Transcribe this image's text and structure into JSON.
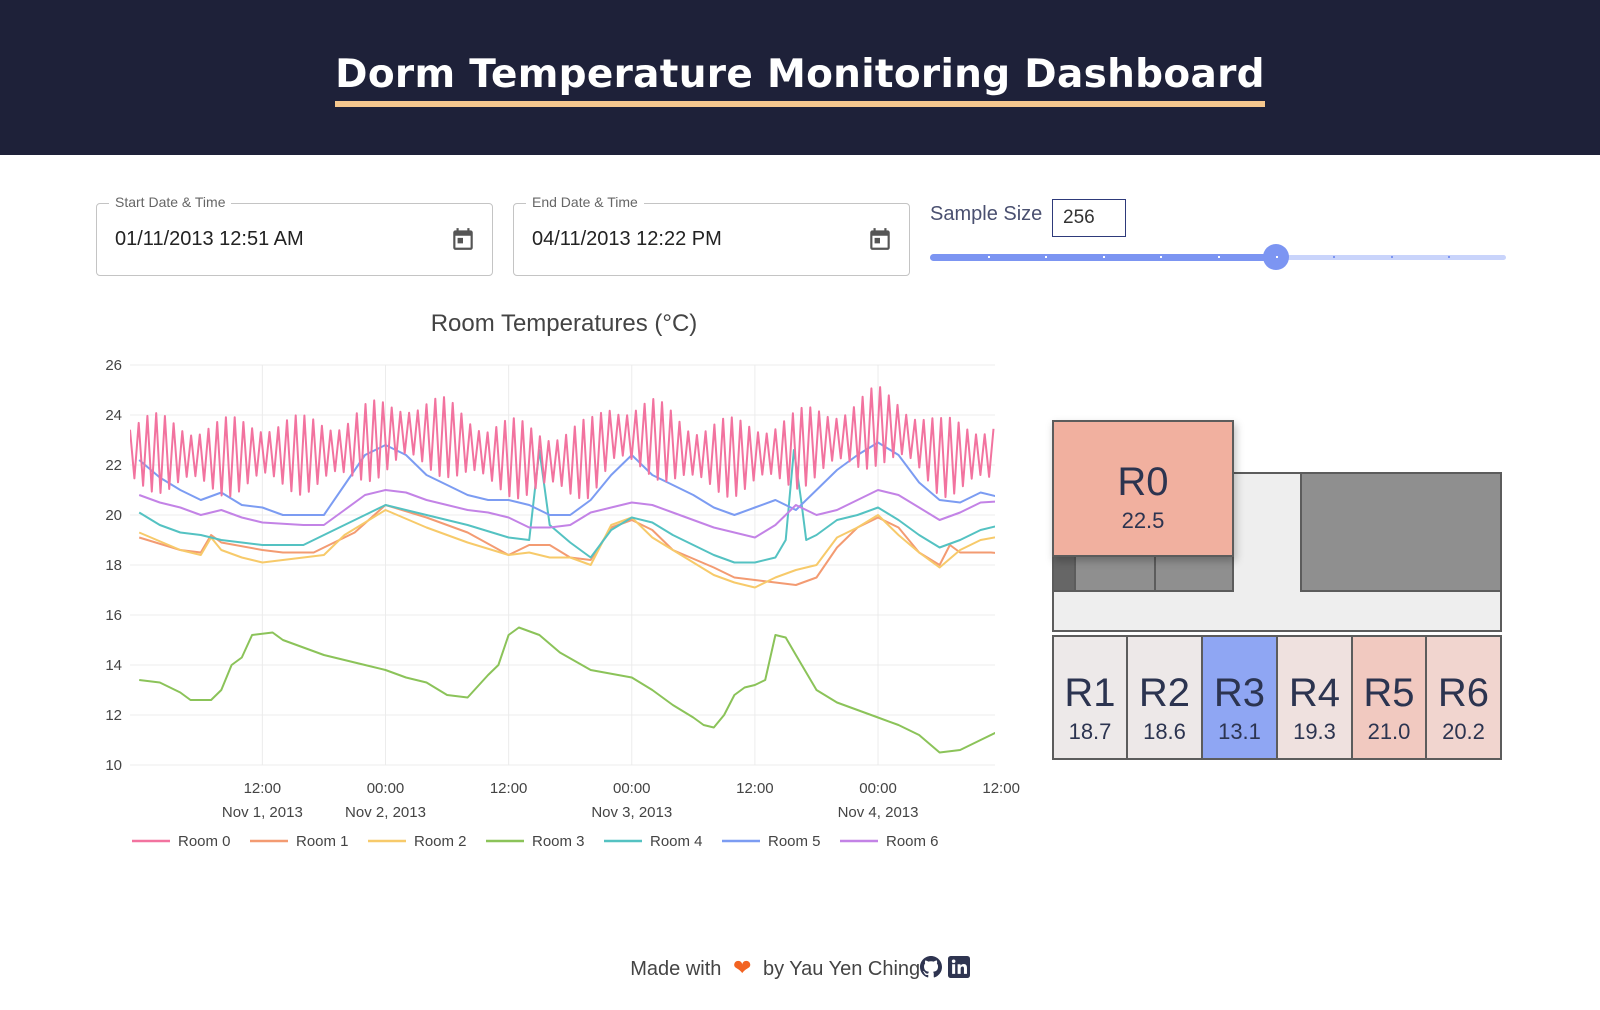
{
  "header": {
    "title": "Dorm Temperature Monitoring Dashboard"
  },
  "controls": {
    "start": {
      "label": "Start Date & Time",
      "value": "01/11/2013 12:51 AM",
      "icon": "calendar-icon"
    },
    "end": {
      "label": "End Date & Time",
      "value": "04/11/2013 12:22 PM",
      "icon": "calendar-icon"
    },
    "sample_size": {
      "label": "Sample Size",
      "value": "256",
      "slider_fraction": 0.6,
      "marks": 10,
      "accent": "#7c95f2"
    }
  },
  "chart_data": {
    "type": "line",
    "title": "Room Temperatures (°C)",
    "ylim": [
      10,
      26
    ],
    "yticks": [
      "10",
      "12",
      "14",
      "16",
      "18",
      "20",
      "22",
      "24",
      "26"
    ],
    "xrange_hours": [
      -0.9,
      83.4
    ],
    "xticks": [
      {
        "hour": 12,
        "time": "12:00",
        "date": "Nov 1, 2013"
      },
      {
        "hour": 24,
        "time": "00:00",
        "date": "Nov 2, 2013"
      },
      {
        "hour": 36,
        "time": "12:00",
        "date": ""
      },
      {
        "hour": 48,
        "time": "00:00",
        "date": "Nov 3, 2013"
      },
      {
        "hour": 60,
        "time": "12:00",
        "date": ""
      },
      {
        "hour": 72,
        "time": "00:00",
        "date": "Nov 4, 2013"
      },
      {
        "hour": 84,
        "time": "12:00",
        "date": ""
      }
    ],
    "grid": true,
    "legend_position": "bottom",
    "series": [
      {
        "name": "Room 0",
        "color": "#f2739f",
        "oscillating": true,
        "amplitude": 1.6,
        "period_h": 0.85,
        "points": [
          [
            1,
            22.5
          ],
          [
            4,
            22.4
          ],
          [
            8,
            22.3
          ],
          [
            12,
            22.5
          ],
          [
            16,
            22.4
          ],
          [
            20,
            22.6
          ],
          [
            22,
            22.9
          ],
          [
            26,
            23.3
          ],
          [
            30,
            23.1
          ],
          [
            34,
            22.4
          ],
          [
            38,
            22.2
          ],
          [
            42,
            22.1
          ],
          [
            44,
            22.3
          ],
          [
            46,
            23.2
          ],
          [
            50,
            23.1
          ],
          [
            54,
            22.4
          ],
          [
            58,
            22.3
          ],
          [
            62,
            22.5
          ],
          [
            64,
            22.6
          ],
          [
            66,
            22.9
          ],
          [
            70,
            23.2
          ],
          [
            72,
            23.6
          ],
          [
            74,
            23.4
          ],
          [
            78,
            22.3
          ],
          [
            82,
            22.4
          ],
          [
            86,
            22.5
          ]
        ]
      },
      {
        "name": "Room 1",
        "color": "#f39b72",
        "points": [
          [
            0,
            19.1
          ],
          [
            4,
            18.6
          ],
          [
            6,
            18.5
          ],
          [
            7,
            19.2
          ],
          [
            8,
            18.9
          ],
          [
            12,
            18.6
          ],
          [
            14,
            18.5
          ],
          [
            17,
            18.5
          ],
          [
            21,
            19.3
          ],
          [
            24,
            20.4
          ],
          [
            28,
            19.9
          ],
          [
            32,
            19.3
          ],
          [
            36,
            18.4
          ],
          [
            38,
            18.8
          ],
          [
            40,
            18.8
          ],
          [
            42,
            18.3
          ],
          [
            44,
            18.2
          ],
          [
            46,
            19.5
          ],
          [
            48,
            19.8
          ],
          [
            50,
            19.4
          ],
          [
            52,
            18.6
          ],
          [
            56,
            17.9
          ],
          [
            58,
            17.5
          ],
          [
            60,
            17.4
          ],
          [
            62,
            17.3
          ],
          [
            64,
            17.2
          ],
          [
            66,
            17.5
          ],
          [
            68,
            18.7
          ],
          [
            70,
            19.5
          ],
          [
            72,
            19.9
          ],
          [
            74,
            19.5
          ],
          [
            76,
            18.5
          ],
          [
            78,
            18.0
          ],
          [
            79,
            18.8
          ],
          [
            80,
            18.5
          ],
          [
            83,
            18.5
          ],
          [
            86,
            18.4
          ]
        ]
      },
      {
        "name": "Room 2",
        "color": "#f7ca6a",
        "points": [
          [
            0,
            19.3
          ],
          [
            4,
            18.6
          ],
          [
            6,
            18.4
          ],
          [
            7,
            19.1
          ],
          [
            8,
            18.6
          ],
          [
            10,
            18.3
          ],
          [
            12,
            18.1
          ],
          [
            16,
            18.3
          ],
          [
            18,
            18.4
          ],
          [
            20,
            19.2
          ],
          [
            24,
            20.2
          ],
          [
            28,
            19.5
          ],
          [
            32,
            18.9
          ],
          [
            36,
            18.4
          ],
          [
            38,
            18.5
          ],
          [
            40,
            18.3
          ],
          [
            42,
            18.3
          ],
          [
            44,
            18.0
          ],
          [
            46,
            19.6
          ],
          [
            48,
            19.9
          ],
          [
            50,
            19.1
          ],
          [
            52,
            18.6
          ],
          [
            56,
            17.6
          ],
          [
            58,
            17.3
          ],
          [
            60,
            17.1
          ],
          [
            62,
            17.5
          ],
          [
            64,
            17.8
          ],
          [
            66,
            18.0
          ],
          [
            68,
            19.1
          ],
          [
            70,
            19.5
          ],
          [
            72,
            20.0
          ],
          [
            74,
            19.2
          ],
          [
            76,
            18.5
          ],
          [
            78,
            17.9
          ],
          [
            80,
            18.6
          ],
          [
            82,
            19.0
          ],
          [
            86,
            19.3
          ]
        ]
      },
      {
        "name": "Room 3",
        "color": "#8bc359",
        "points": [
          [
            0,
            13.4
          ],
          [
            2,
            13.3
          ],
          [
            4,
            12.9
          ],
          [
            5,
            12.6
          ],
          [
            7,
            12.6
          ],
          [
            8,
            13.0
          ],
          [
            9,
            14.0
          ],
          [
            10,
            14.3
          ],
          [
            11,
            15.2
          ],
          [
            13,
            15.3
          ],
          [
            14,
            15.0
          ],
          [
            16,
            14.7
          ],
          [
            18,
            14.4
          ],
          [
            22,
            14.0
          ],
          [
            24,
            13.8
          ],
          [
            26,
            13.5
          ],
          [
            28,
            13.3
          ],
          [
            30,
            12.8
          ],
          [
            32,
            12.7
          ],
          [
            34,
            13.6
          ],
          [
            35,
            14.0
          ],
          [
            36,
            15.2
          ],
          [
            37,
            15.5
          ],
          [
            39,
            15.2
          ],
          [
            41,
            14.5
          ],
          [
            44,
            13.8
          ],
          [
            48,
            13.5
          ],
          [
            50,
            13.0
          ],
          [
            52,
            12.4
          ],
          [
            54,
            11.9
          ],
          [
            55,
            11.6
          ],
          [
            56,
            11.5
          ],
          [
            57,
            12.0
          ],
          [
            58,
            12.8
          ],
          [
            59,
            13.1
          ],
          [
            60,
            13.2
          ],
          [
            61,
            13.4
          ],
          [
            62,
            15.2
          ],
          [
            63,
            15.1
          ],
          [
            64,
            14.4
          ],
          [
            66,
            13.0
          ],
          [
            68,
            12.5
          ],
          [
            70,
            12.2
          ],
          [
            72,
            11.9
          ],
          [
            74,
            11.6
          ],
          [
            76,
            11.2
          ],
          [
            78,
            10.5
          ],
          [
            80,
            10.6
          ],
          [
            82,
            11.0
          ],
          [
            84,
            11.4
          ],
          [
            86,
            11.6
          ]
        ]
      },
      {
        "name": "Room 4",
        "color": "#54c2c2",
        "points": [
          [
            0,
            20.1
          ],
          [
            2,
            19.6
          ],
          [
            4,
            19.3
          ],
          [
            6,
            19.2
          ],
          [
            8,
            19.0
          ],
          [
            10,
            18.9
          ],
          [
            12,
            18.8
          ],
          [
            16,
            18.8
          ],
          [
            18,
            19.2
          ],
          [
            22,
            20.0
          ],
          [
            24,
            20.4
          ],
          [
            28,
            20.0
          ],
          [
            32,
            19.6
          ],
          [
            36,
            19.1
          ],
          [
            38,
            19.0
          ],
          [
            39,
            22.6
          ],
          [
            40,
            19.6
          ],
          [
            42,
            18.9
          ],
          [
            44,
            18.3
          ],
          [
            46,
            19.4
          ],
          [
            48,
            19.9
          ],
          [
            50,
            19.7
          ],
          [
            52,
            19.2
          ],
          [
            56,
            18.4
          ],
          [
            58,
            18.1
          ],
          [
            60,
            18.1
          ],
          [
            62,
            18.3
          ],
          [
            63,
            19.0
          ],
          [
            63.8,
            22.6
          ],
          [
            64.5,
            20.6
          ],
          [
            65,
            19.0
          ],
          [
            66,
            19.2
          ],
          [
            68,
            19.8
          ],
          [
            70,
            20.0
          ],
          [
            72,
            20.3
          ],
          [
            74,
            19.8
          ],
          [
            76,
            19.2
          ],
          [
            78,
            18.7
          ],
          [
            80,
            19.0
          ],
          [
            82,
            19.4
          ],
          [
            86,
            19.8
          ]
        ]
      },
      {
        "name": "Room 5",
        "color": "#7c9cf2",
        "points": [
          [
            0,
            22.2
          ],
          [
            2,
            21.5
          ],
          [
            4,
            21.0
          ],
          [
            6,
            20.6
          ],
          [
            8,
            20.9
          ],
          [
            10,
            20.4
          ],
          [
            12,
            20.3
          ],
          [
            14,
            20.0
          ],
          [
            18,
            20.0
          ],
          [
            20,
            21.2
          ],
          [
            22,
            22.4
          ],
          [
            24,
            22.8
          ],
          [
            26,
            22.4
          ],
          [
            28,
            21.6
          ],
          [
            30,
            21.2
          ],
          [
            32,
            20.8
          ],
          [
            34,
            20.6
          ],
          [
            36,
            20.6
          ],
          [
            38,
            20.4
          ],
          [
            40,
            20.0
          ],
          [
            42,
            20.0
          ],
          [
            44,
            20.6
          ],
          [
            46,
            21.6
          ],
          [
            48,
            22.4
          ],
          [
            50,
            21.6
          ],
          [
            52,
            21.2
          ],
          [
            54,
            20.8
          ],
          [
            56,
            20.3
          ],
          [
            58,
            20.0
          ],
          [
            60,
            20.3
          ],
          [
            62,
            20.6
          ],
          [
            64,
            20.2
          ],
          [
            66,
            21.0
          ],
          [
            68,
            21.8
          ],
          [
            70,
            22.4
          ],
          [
            72,
            22.9
          ],
          [
            74,
            22.4
          ],
          [
            76,
            21.3
          ],
          [
            78,
            20.6
          ],
          [
            80,
            20.5
          ],
          [
            82,
            20.9
          ],
          [
            86,
            20.5
          ]
        ]
      },
      {
        "name": "Room 6",
        "color": "#c383e6",
        "points": [
          [
            0,
            20.8
          ],
          [
            2,
            20.5
          ],
          [
            4,
            20.3
          ],
          [
            6,
            20.0
          ],
          [
            8,
            20.2
          ],
          [
            10,
            19.9
          ],
          [
            12,
            19.7
          ],
          [
            16,
            19.6
          ],
          [
            18,
            19.6
          ],
          [
            20,
            20.2
          ],
          [
            22,
            20.8
          ],
          [
            24,
            21.0
          ],
          [
            26,
            20.9
          ],
          [
            28,
            20.6
          ],
          [
            30,
            20.4
          ],
          [
            32,
            20.2
          ],
          [
            34,
            20.1
          ],
          [
            36,
            19.9
          ],
          [
            38,
            19.5
          ],
          [
            40,
            19.5
          ],
          [
            42,
            19.6
          ],
          [
            44,
            20.1
          ],
          [
            46,
            20.3
          ],
          [
            48,
            20.5
          ],
          [
            50,
            20.4
          ],
          [
            52,
            20.1
          ],
          [
            54,
            19.8
          ],
          [
            56,
            19.5
          ],
          [
            58,
            19.3
          ],
          [
            60,
            19.1
          ],
          [
            62,
            19.6
          ],
          [
            64,
            20.4
          ],
          [
            66,
            20.0
          ],
          [
            68,
            20.2
          ],
          [
            70,
            20.6
          ],
          [
            72,
            21.0
          ],
          [
            74,
            20.8
          ],
          [
            76,
            20.3
          ],
          [
            78,
            19.8
          ],
          [
            80,
            20.1
          ],
          [
            82,
            20.5
          ],
          [
            86,
            20.6
          ]
        ]
      }
    ]
  },
  "floor_plan": {
    "rooms": [
      {
        "name": "R0",
        "temp": "22.5",
        "color": "#f1b09f"
      },
      {
        "name": "R1",
        "temp": "18.7",
        "color": "#ede9e9"
      },
      {
        "name": "R2",
        "temp": "18.6",
        "color": "#ede8e8"
      },
      {
        "name": "R3",
        "temp": "13.1",
        "color": "#8fa6f3"
      },
      {
        "name": "R4",
        "temp": "19.3",
        "color": "#efe1df"
      },
      {
        "name": "R5",
        "temp": "21.0",
        "color": "#f1c9c0"
      },
      {
        "name": "R6",
        "temp": "20.2",
        "color": "#f1d5cf"
      }
    ]
  },
  "footer": {
    "prefix": "Made with",
    "heart": "❤",
    "suffix": "by Yau Yen Ching",
    "icons": [
      "github-icon",
      "linkedin-icon"
    ],
    "heart_color": "#f26322"
  }
}
